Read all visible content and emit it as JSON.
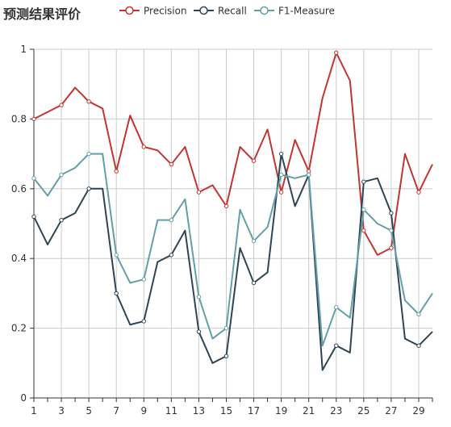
{
  "chart_data": {
    "type": "line",
    "title": "预测结果评价",
    "x": [
      1,
      2,
      3,
      4,
      5,
      6,
      7,
      8,
      9,
      10,
      11,
      12,
      13,
      14,
      15,
      16,
      17,
      18,
      19,
      20,
      21,
      22,
      23,
      24,
      25,
      26,
      27,
      28,
      29,
      30
    ],
    "x_tick_labels": [
      "1",
      "3",
      "5",
      "7",
      "9",
      "11",
      "13",
      "15",
      "17",
      "19",
      "21",
      "23",
      "25",
      "27",
      "29"
    ],
    "y_tick_labels": [
      "0",
      "0.2",
      "0.4",
      "0.6",
      "0.8",
      "1"
    ],
    "ylim": [
      0,
      1
    ],
    "grid": true,
    "legend_position": "top-center",
    "series": [
      {
        "name": "Precision",
        "color": "#c23531",
        "values": [
          0.8,
          0.82,
          0.84,
          0.89,
          0.85,
          0.83,
          0.65,
          0.81,
          0.72,
          0.71,
          0.67,
          0.72,
          0.59,
          0.61,
          0.55,
          0.72,
          0.68,
          0.77,
          0.59,
          0.74,
          0.65,
          0.86,
          0.99,
          0.91,
          0.48,
          0.41,
          0.43,
          0.7,
          0.59,
          0.67
        ]
      },
      {
        "name": "Recall",
        "color": "#2f4554",
        "values": [
          0.52,
          0.44,
          0.51,
          0.53,
          0.6,
          0.6,
          0.3,
          0.21,
          0.22,
          0.39,
          0.41,
          0.48,
          0.19,
          0.1,
          0.12,
          0.43,
          0.33,
          0.36,
          0.7,
          0.55,
          0.64,
          0.08,
          0.15,
          0.13,
          0.62,
          0.63,
          0.53,
          0.17,
          0.15,
          0.19
        ]
      },
      {
        "name": "F1-Measure",
        "color": "#61a0a8",
        "values": [
          0.63,
          0.58,
          0.64,
          0.66,
          0.7,
          0.7,
          0.41,
          0.33,
          0.34,
          0.51,
          0.51,
          0.57,
          0.29,
          0.17,
          0.2,
          0.54,
          0.45,
          0.49,
          0.64,
          0.63,
          0.64,
          0.15,
          0.26,
          0.23,
          0.54,
          0.5,
          0.48,
          0.28,
          0.24,
          0.3
        ]
      }
    ]
  }
}
